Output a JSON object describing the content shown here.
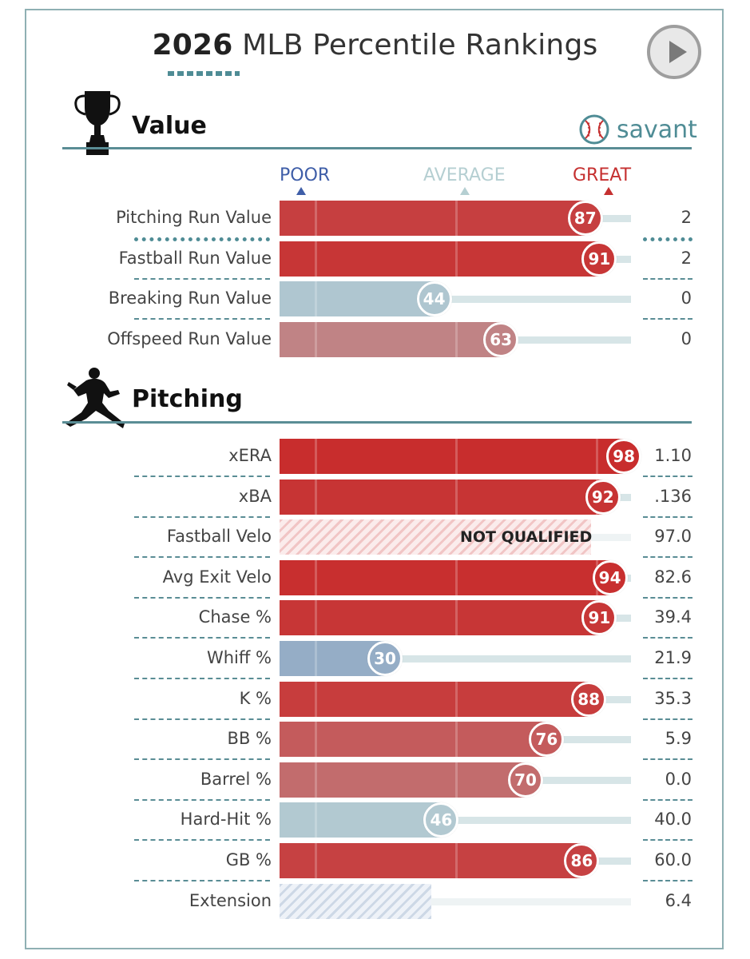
{
  "title": {
    "year": "2026",
    "rest": "MLB Percentile Rankings"
  },
  "brand": {
    "word": "savant"
  },
  "colors": {
    "accent": "#4f8c95",
    "poor": "#3f5ea8",
    "average": "#b9d3d6",
    "great": "#c53030"
  },
  "scale_labels": {
    "poor": "POOR",
    "average": "AVERAGE",
    "great": "GREAT"
  },
  "sections": {
    "value": {
      "title": "Value",
      "icon": "trophy-icon"
    },
    "pitching": {
      "title": "Pitching",
      "icon": "pitcher-icon"
    }
  },
  "chart_data": {
    "type": "bar",
    "title": "2026 MLB Percentile Rankings",
    "axis": {
      "min": 0,
      "max": 100,
      "labels": [
        "POOR",
        "AVERAGE",
        "GREAT"
      ]
    },
    "value_rows": [
      {
        "label": "Pitching Run Value",
        "percentile": 87,
        "value": "2",
        "qualified": true
      },
      {
        "label": "Fastball Run Value",
        "percentile": 91,
        "value": "2",
        "qualified": true
      },
      {
        "label": "Breaking Run Value",
        "percentile": 44,
        "value": "0",
        "qualified": true
      },
      {
        "label": "Offspeed Run Value",
        "percentile": 63,
        "value": "0",
        "qualified": true
      }
    ],
    "pitching_rows": [
      {
        "label": "xERA",
        "percentile": 98,
        "value": "1.10",
        "qualified": true
      },
      {
        "label": "xBA",
        "percentile": 92,
        "value": ".136",
        "qualified": true
      },
      {
        "label": "Fastball Velo",
        "percentile": null,
        "value": "97.0",
        "qualified": false,
        "status": "NOT QUALIFIED"
      },
      {
        "label": "Avg Exit Velo",
        "percentile": 94,
        "value": "82.6",
        "qualified": true
      },
      {
        "label": "Chase %",
        "percentile": 91,
        "value": "39.4",
        "qualified": true
      },
      {
        "label": "Whiff %",
        "percentile": 30,
        "value": "21.9",
        "qualified": true
      },
      {
        "label": "K %",
        "percentile": 88,
        "value": "35.3",
        "qualified": true
      },
      {
        "label": "BB %",
        "percentile": 76,
        "value": "5.9",
        "qualified": true
      },
      {
        "label": "Barrel %",
        "percentile": 70,
        "value": "0.0",
        "qualified": true
      },
      {
        "label": "Hard-Hit %",
        "percentile": 46,
        "value": "40.0",
        "qualified": true
      },
      {
        "label": "GB %",
        "percentile": 86,
        "value": "60.0",
        "qualified": true
      },
      {
        "label": "Extension",
        "percentile": null,
        "value": "6.4",
        "qualified": false,
        "status": ""
      }
    ]
  }
}
